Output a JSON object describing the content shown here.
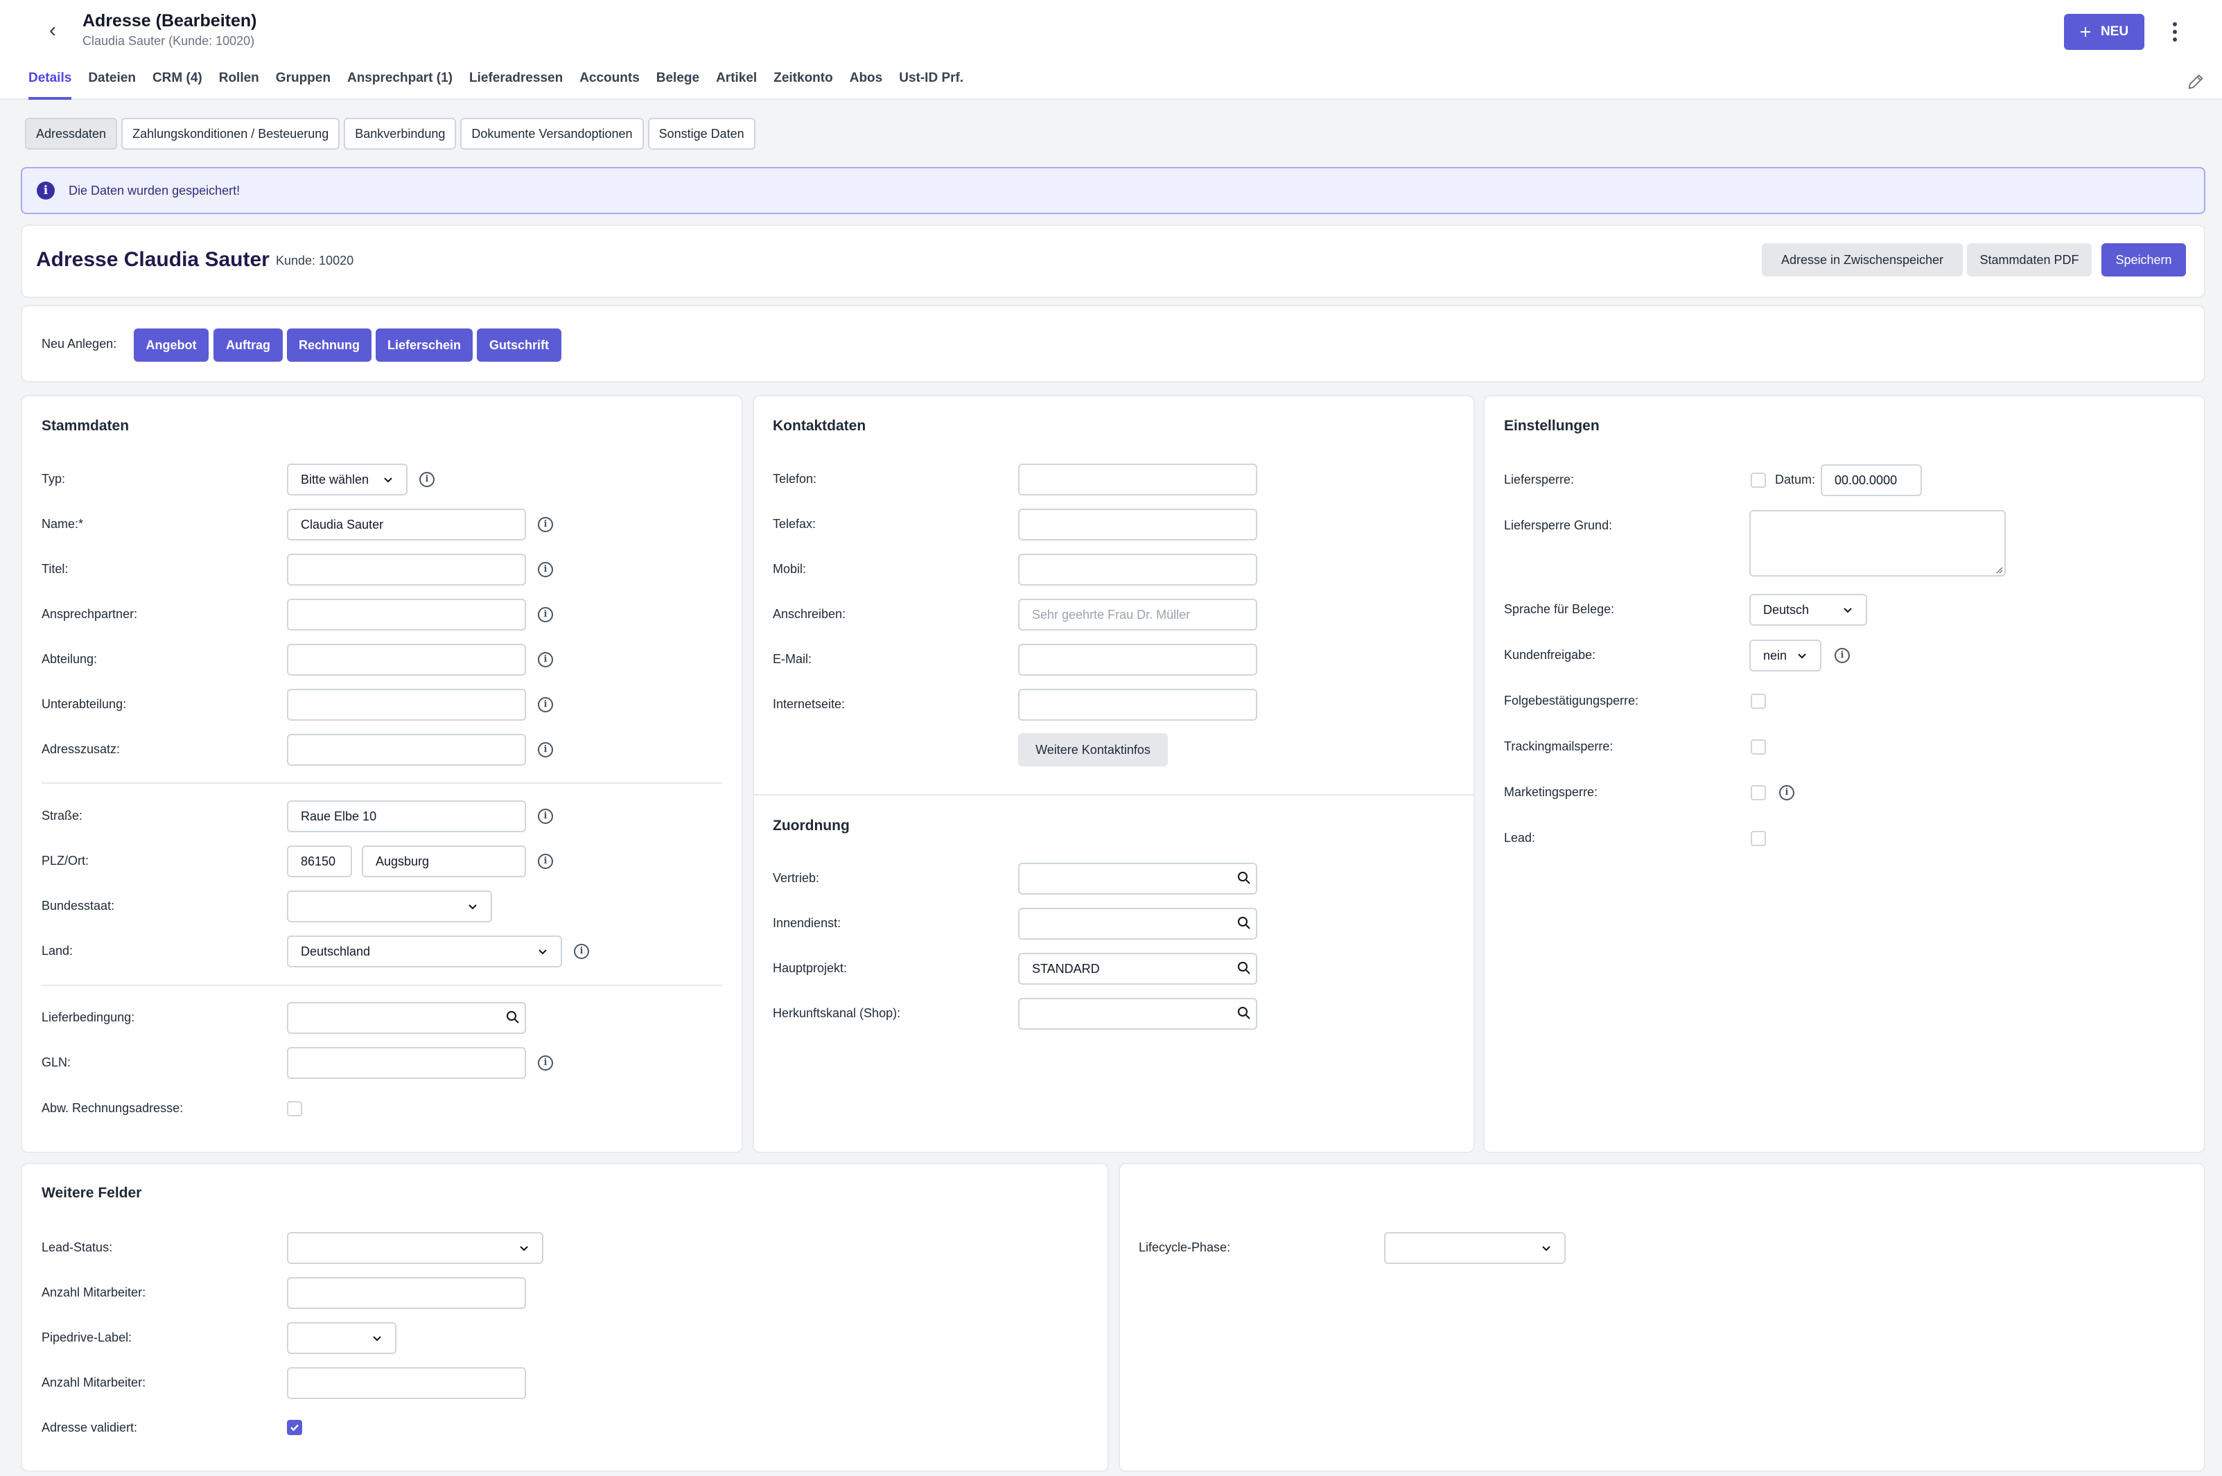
{
  "header": {
    "title": "Adresse (Bearbeiten)",
    "subtitle": "Claudia Sauter (Kunde: 10020)",
    "new_button": "NEU"
  },
  "tabs": [
    "Details",
    "Dateien",
    "CRM (4)",
    "Rollen",
    "Gruppen",
    "Ansprechpart (1)",
    "Lieferadressen",
    "Accounts",
    "Belege",
    "Artikel",
    "Zeitkonto",
    "Abos",
    "Ust-ID Prf."
  ],
  "subtabs": [
    "Adressdaten",
    "Zahlungskonditionen / Besteuerung",
    "Bankverbindung",
    "Dokumente Versandoptionen",
    "Sonstige Daten"
  ],
  "info_message": "Die Daten wurden gespeichert!",
  "address_header": {
    "prefix": "Adresse",
    "name": "Claudia Sauter",
    "kunde": "Kunde: 10020",
    "buttons": {
      "clipboard": "Adresse in Zwischenspeicher",
      "pdf": "Stammdaten PDF",
      "save": "Speichern"
    }
  },
  "create_new": {
    "label": "Neu Anlegen:",
    "buttons": [
      "Angebot",
      "Auftrag",
      "Rechnung",
      "Lieferschein",
      "Gutschrift"
    ]
  },
  "stammdaten": {
    "title": "Stammdaten",
    "typ": {
      "label": "Typ:",
      "value": "Bitte wählen"
    },
    "name": {
      "label": "Name:*",
      "value": "Claudia Sauter"
    },
    "titel": {
      "label": "Titel:",
      "value": ""
    },
    "ansprechpartner": {
      "label": "Ansprechpartner:",
      "value": ""
    },
    "abteilung": {
      "label": "Abteilung:",
      "value": ""
    },
    "unterabteilung": {
      "label": "Unterabteilung:",
      "value": ""
    },
    "adresszusatz": {
      "label": "Adresszusatz:",
      "value": ""
    },
    "strasse": {
      "label": "Straße:",
      "value": "Raue Elbe 10"
    },
    "plzort": {
      "label": "PLZ/Ort:",
      "plz": "86150",
      "ort": "Augsburg"
    },
    "bundesstaat": {
      "label": "Bundesstaat:",
      "value": ""
    },
    "land": {
      "label": "Land:",
      "value": "Deutschland"
    },
    "lieferbedingung": {
      "label": "Lieferbedingung:",
      "value": ""
    },
    "gln": {
      "label": "GLN:",
      "value": ""
    },
    "abw_rechnungsadresse": {
      "label": "Abw. Rechnungsadresse:",
      "checked": false
    }
  },
  "kontaktdaten": {
    "title": "Kontaktdaten",
    "telefon": {
      "label": "Telefon:",
      "value": ""
    },
    "telefax": {
      "label": "Telefax:",
      "value": ""
    },
    "mobil": {
      "label": "Mobil:",
      "value": ""
    },
    "anschreiben": {
      "label": "Anschreiben:",
      "placeholder": "Sehr geehrte Frau Dr. Müller"
    },
    "email": {
      "label": "E-Mail:",
      "value": ""
    },
    "internetseite": {
      "label": "Internetseite:",
      "value": ""
    },
    "more_button": "Weitere Kontaktinfos"
  },
  "zuordnung": {
    "title": "Zuordnung",
    "vertrieb": {
      "label": "Vertrieb:",
      "value": ""
    },
    "innendienst": {
      "label": "Innendienst:",
      "value": ""
    },
    "hauptprojekt": {
      "label": "Hauptprojekt:",
      "value": "STANDARD"
    },
    "herkunftskanal": {
      "label": "Herkunftskanal (Shop):",
      "value": ""
    }
  },
  "einstellungen": {
    "title": "Einstellungen",
    "liefersperre": {
      "label": "Liefersperre:",
      "datum_label": "Datum:",
      "datum": "00.00.0000"
    },
    "liefersperre_grund": {
      "label": "Liefersperre Grund:",
      "value": ""
    },
    "sprache": {
      "label": "Sprache für Belege:",
      "value": "Deutsch"
    },
    "kundenfreigabe": {
      "label": "Kundenfreigabe:",
      "value": "nein"
    },
    "folgebestaetigungssperre": {
      "label": "Folgebestätigungsperre:"
    },
    "trackingmailsperre": {
      "label": "Trackingmailsperre:"
    },
    "marketingsperre": {
      "label": "Marketingsperre:"
    },
    "lead": {
      "label": "Lead:"
    }
  },
  "weitere_felder": {
    "title": "Weitere Felder",
    "lead_status": {
      "label": "Lead-Status:",
      "value": ""
    },
    "anzahl_mitarbeiter_1": {
      "label": "Anzahl Mitarbeiter:",
      "value": ""
    },
    "pipedrive_label": {
      "label": "Pipedrive-Label:",
      "value": ""
    },
    "anzahl_mitarbeiter_2": {
      "label": "Anzahl Mitarbeiter:",
      "value": ""
    },
    "adresse_validiert": {
      "label": "Adresse validiert:",
      "checked": true
    },
    "lifecycle_phase": {
      "label": "Lifecycle-Phase:",
      "value": ""
    }
  }
}
